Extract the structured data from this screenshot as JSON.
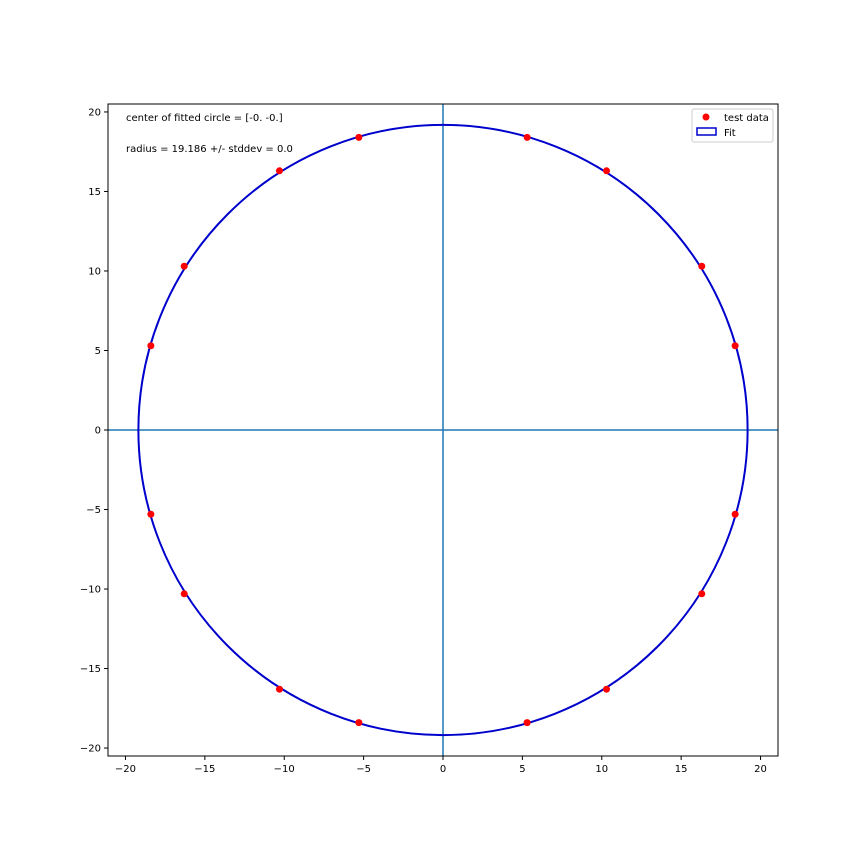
{
  "chart_data": {
    "type": "scatter",
    "title": "",
    "xlabel": "",
    "ylabel": "",
    "xlim": [
      -21.1,
      21.1
    ],
    "ylim": [
      -20.5,
      20.5
    ],
    "xticks": [
      -20,
      -15,
      -10,
      -5,
      0,
      5,
      10,
      15,
      20
    ],
    "yticks": [
      -20,
      -15,
      -10,
      -5,
      0,
      5,
      10,
      15,
      20
    ],
    "xtick_labels": [
      "−20",
      "−15",
      "−10",
      "−5",
      "0",
      "5",
      "10",
      "15",
      "20"
    ],
    "ytick_labels": [
      "−20",
      "−15",
      "−10",
      "−5",
      "0",
      "5",
      "10",
      "15",
      "20"
    ],
    "grid": false,
    "legend_position": "top-right",
    "reference_lines": {
      "horizontal_y": 0,
      "vertical_x": 0,
      "color": "#1f77b4"
    },
    "series": [
      {
        "name": "test data",
        "kind": "points",
        "color": "#ff0000",
        "points": [
          {
            "x": 5.3,
            "y": 18.4
          },
          {
            "x": 10.3,
            "y": 16.3
          },
          {
            "x": 16.3,
            "y": 10.3
          },
          {
            "x": 18.4,
            "y": 5.3
          },
          {
            "x": 18.4,
            "y": -5.3
          },
          {
            "x": 16.3,
            "y": -10.3
          },
          {
            "x": 10.3,
            "y": -16.3
          },
          {
            "x": 5.3,
            "y": -18.4
          },
          {
            "x": -5.3,
            "y": -18.4
          },
          {
            "x": -10.3,
            "y": -16.3
          },
          {
            "x": -16.3,
            "y": -10.3
          },
          {
            "x": -18.4,
            "y": -5.3
          },
          {
            "x": -18.4,
            "y": 5.3
          },
          {
            "x": -16.3,
            "y": 10.3
          },
          {
            "x": -10.3,
            "y": 16.3
          },
          {
            "x": -5.3,
            "y": 18.4
          }
        ]
      },
      {
        "name": "Fit",
        "kind": "circle",
        "color": "#0000cd",
        "center": [
          0,
          0
        ],
        "radius": 19.186
      }
    ],
    "annotations": [
      "center of fitted circle = [-0. -0.]",
      "radius = 19.186 +/- stddev = 0.0"
    ]
  }
}
